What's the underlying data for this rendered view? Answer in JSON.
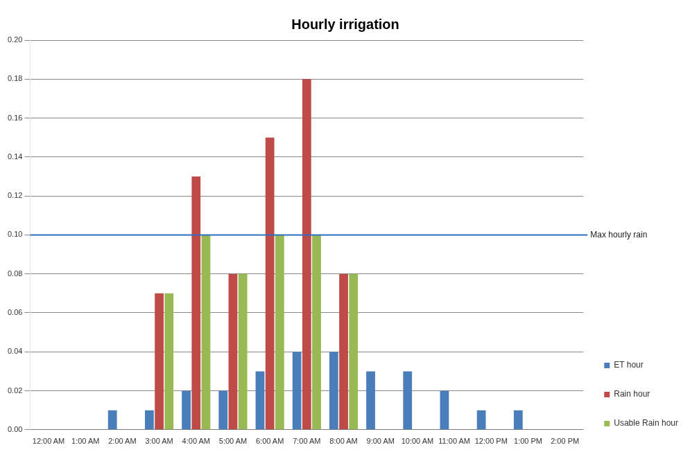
{
  "chart_data": {
    "type": "bar",
    "title": "Hourly irrigation",
    "categories": [
      "12:00 AM",
      "1:00 AM",
      "2:00 AM",
      "3:00 AM",
      "4:00 AM",
      "5:00 AM",
      "6:00 AM",
      "7:00 AM",
      "8:00 AM",
      "9:00 AM",
      "10:00 AM",
      "11:00 AM",
      "12:00 PM",
      "1:00 PM",
      "2:00 PM"
    ],
    "series": [
      {
        "name": "ET hour",
        "color": "#4a7ebb",
        "values": [
          0,
          0,
          0.01,
          0.01,
          0.02,
          0.02,
          0.03,
          0.04,
          0.04,
          0.03,
          0.03,
          0.02,
          0.01,
          0.01,
          0
        ]
      },
      {
        "name": "Rain hour",
        "color": "#be4b48",
        "values": [
          0,
          0,
          0,
          0.07,
          0.13,
          0.08,
          0.15,
          0.18,
          0.08,
          0,
          0,
          0,
          0,
          0,
          0
        ]
      },
      {
        "name": "Usable Rain hour",
        "color": "#98b954",
        "values": [
          0,
          0,
          0,
          0.07,
          0.1,
          0.08,
          0.1,
          0.1,
          0.08,
          0,
          0,
          0,
          0,
          0,
          0
        ]
      }
    ],
    "ylim": [
      0,
      0.2
    ],
    "yticks": [
      {
        "value": 0,
        "label": "0.00"
      },
      {
        "value": 0.02,
        "label": "0.02"
      },
      {
        "value": 0.04,
        "label": "0.04"
      },
      {
        "value": 0.06,
        "label": "0.06"
      },
      {
        "value": 0.08,
        "label": "0.08"
      },
      {
        "value": 0.1,
        "label": "0.10"
      },
      {
        "value": 0.12,
        "label": "0.12"
      },
      {
        "value": 0.14,
        "label": "0.14"
      },
      {
        "value": 0.16,
        "label": "0.16"
      },
      {
        "value": 0.18,
        "label": "0.18"
      },
      {
        "value": 0.2,
        "label": "0.20"
      }
    ],
    "ref_lines": [
      {
        "axis": "y",
        "value": 0.1,
        "label": "Max hourly rain",
        "color": "#2f6fbf"
      }
    ],
    "grid": "y",
    "legend": "right"
  }
}
